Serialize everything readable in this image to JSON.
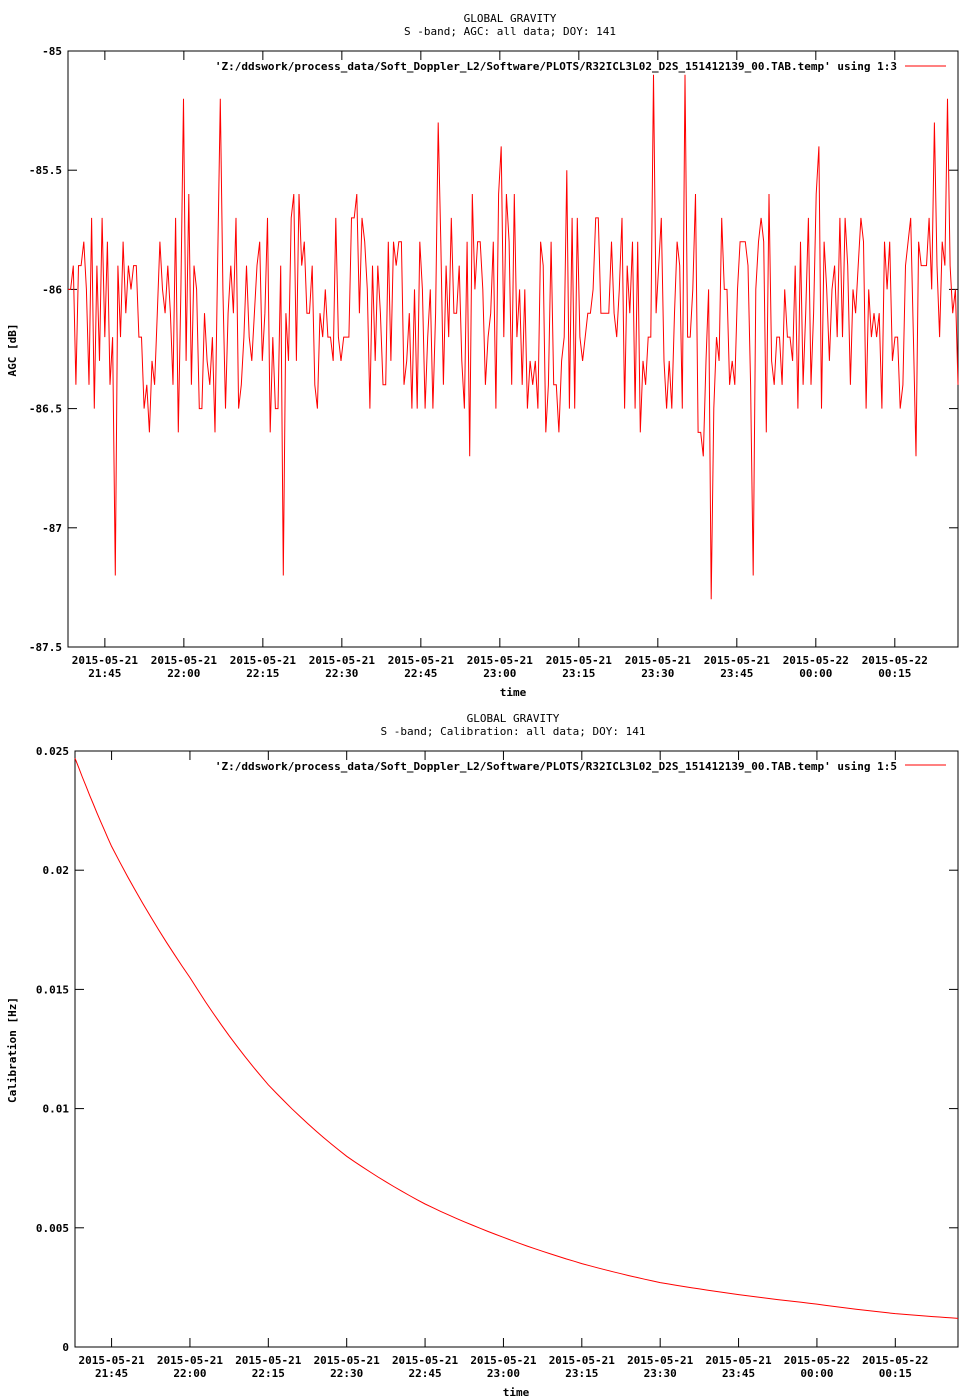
{
  "chart_data": [
    {
      "type": "line",
      "title": "GLOBAL GRAVITY",
      "subtitle": "S -band; AGC: all data; DOY: 141",
      "xlabel": "time",
      "ylabel": "AGC [dB]",
      "legend": "'Z:/ddswork/process_data/Soft_Doppler_L2/Software/PLOTS/R32ICL3L02_D2S_151412139_00.TAB.temp' using 1:3",
      "legend_position": "top-right",
      "series_color": "#ff0000",
      "ylim": [
        -87.5,
        -85
      ],
      "xlim": [
        "2015-05-21 21:38",
        "2015-05-22 00:27"
      ],
      "yticks": [
        {
          "value": -85,
          "label": "-85"
        },
        {
          "value": -85.5,
          "label": "-85.5"
        },
        {
          "value": -86,
          "label": "-86"
        },
        {
          "value": -86.5,
          "label": "-86.5"
        },
        {
          "value": -87,
          "label": "-87"
        },
        {
          "value": -87.5,
          "label": "-87.5"
        }
      ],
      "xticks": [
        {
          "value": "2015-05-21 21:45",
          "date": "2015-05-21",
          "time": "21:45"
        },
        {
          "value": "2015-05-21 22:00",
          "date": "2015-05-21",
          "time": "22:00"
        },
        {
          "value": "2015-05-21 22:15",
          "date": "2015-05-21",
          "time": "22:15"
        },
        {
          "value": "2015-05-21 22:30",
          "date": "2015-05-21",
          "time": "22:30"
        },
        {
          "value": "2015-05-21 22:45",
          "date": "2015-05-21",
          "time": "22:45"
        },
        {
          "value": "2015-05-21 23:00",
          "date": "2015-05-21",
          "time": "23:00"
        },
        {
          "value": "2015-05-21 23:15",
          "date": "2015-05-21",
          "time": "23:15"
        },
        {
          "value": "2015-05-21 23:30",
          "date": "2015-05-21",
          "time": "23:30"
        },
        {
          "value": "2015-05-21 23:45",
          "date": "2015-05-21",
          "time": "23:45"
        },
        {
          "value": "2015-05-22 00:00",
          "date": "2015-05-22",
          "time": "00:00"
        },
        {
          "value": "2015-05-22 00:15",
          "date": "2015-05-22",
          "time": "00:15"
        }
      ],
      "series": [
        {
          "sampling": "noisy signal fluctuating around -86.1 dB, mostly between -86.7 and -85.6",
          "x_start": "2015-05-21 21:38",
          "x_end": "2015-05-22 00:27",
          "points_count": 340,
          "extremes": [
            {
              "x": "2015-05-21 21:47",
              "y": -87.2
            },
            {
              "x": "2015-05-21 22:00",
              "y": -85.2
            },
            {
              "x": "2015-05-21 22:07",
              "y": -85.2
            },
            {
              "x": "2015-05-21 22:19",
              "y": -87.2
            },
            {
              "x": "2015-05-21 23:29",
              "y": -85.1
            },
            {
              "x": "2015-05-21 23:35",
              "y": -85.1
            },
            {
              "x": "2015-05-21 23:40",
              "y": -87.3
            },
            {
              "x": "2015-05-21 23:48",
              "y": -87.2
            },
            {
              "x": "2015-05-22 00:25",
              "y": -85.2
            }
          ]
        }
      ]
    },
    {
      "type": "line",
      "title": "GLOBAL GRAVITY",
      "subtitle": "S -band; Calibration: all data; DOY: 141",
      "xlabel": "time",
      "ylabel": "Calibration [Hz]",
      "legend": "'Z:/ddswork/process_data/Soft_Doppler_L2/Software/PLOTS/R32ICL3L02_D2S_151412139_00.TAB.temp' using 1:5",
      "legend_position": "top-right",
      "series_color": "#ff0000",
      "ylim": [
        0,
        0.025
      ],
      "xlim": [
        "2015-05-21 21:38",
        "2015-05-22 00:27"
      ],
      "yticks": [
        {
          "value": 0,
          "label": "0"
        },
        {
          "value": 0.005,
          "label": "0.005"
        },
        {
          "value": 0.01,
          "label": "0.01"
        },
        {
          "value": 0.015,
          "label": "0.015"
        },
        {
          "value": 0.02,
          "label": "0.02"
        },
        {
          "value": 0.025,
          "label": "0.025"
        }
      ],
      "xticks": [
        {
          "value": "2015-05-21 21:45",
          "date": "2015-05-21",
          "time": "21:45"
        },
        {
          "value": "2015-05-21 22:00",
          "date": "2015-05-21",
          "time": "22:00"
        },
        {
          "value": "2015-05-21 22:15",
          "date": "2015-05-21",
          "time": "22:15"
        },
        {
          "value": "2015-05-21 22:30",
          "date": "2015-05-21",
          "time": "22:30"
        },
        {
          "value": "2015-05-21 22:45",
          "date": "2015-05-21",
          "time": "22:45"
        },
        {
          "value": "2015-05-21 23:00",
          "date": "2015-05-21",
          "time": "23:00"
        },
        {
          "value": "2015-05-21 23:15",
          "date": "2015-05-21",
          "time": "23:15"
        },
        {
          "value": "2015-05-21 23:30",
          "date": "2015-05-21",
          "time": "23:30"
        },
        {
          "value": "2015-05-21 23:45",
          "date": "2015-05-21",
          "time": "23:45"
        },
        {
          "value": "2015-05-22 00:00",
          "date": "2015-05-22",
          "time": "00:00"
        },
        {
          "value": "2015-05-22 00:15",
          "date": "2015-05-22",
          "time": "00:15"
        }
      ],
      "series": [
        {
          "points": [
            {
              "x": "2015-05-21 21:38",
              "y": 0.0247
            },
            {
              "x": "2015-05-21 21:45",
              "y": 0.021
            },
            {
              "x": "2015-05-21 22:00",
              "y": 0.0155
            },
            {
              "x": "2015-05-21 22:15",
              "y": 0.011
            },
            {
              "x": "2015-05-21 22:30",
              "y": 0.008
            },
            {
              "x": "2015-05-21 22:45",
              "y": 0.006
            },
            {
              "x": "2015-05-21 23:00",
              "y": 0.0046
            },
            {
              "x": "2015-05-21 23:15",
              "y": 0.0035
            },
            {
              "x": "2015-05-21 23:30",
              "y": 0.0027
            },
            {
              "x": "2015-05-21 23:45",
              "y": 0.0022
            },
            {
              "x": "2015-05-22 00:00",
              "y": 0.0018
            },
            {
              "x": "2015-05-22 00:15",
              "y": 0.0014
            },
            {
              "x": "2015-05-22 00:27",
              "y": 0.0012
            }
          ]
        }
      ]
    }
  ]
}
